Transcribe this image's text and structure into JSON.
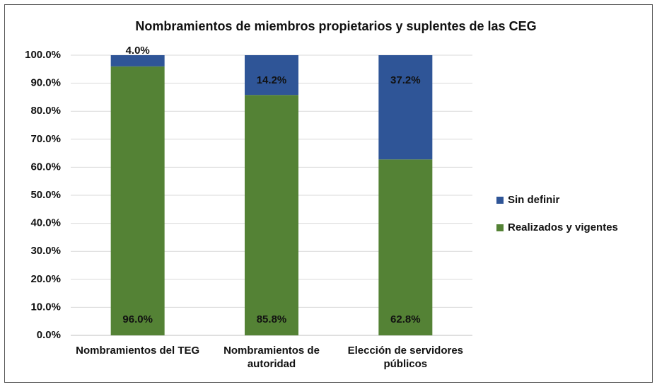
{
  "chart_data": {
    "type": "stacked_bar",
    "title": "Nombramientos de miembros propietarios y suplentes de las CEG",
    "categories": [
      "Nombramientos del TEG",
      "Nombramientos de autoridad",
      "Elección de servidores públicos"
    ],
    "series": [
      {
        "name": "Realizados y vigentes",
        "color": "#548235",
        "values": [
          96.0,
          85.8,
          62.8
        ],
        "value_labels": [
          "96.0%",
          "85.8%",
          "62.8%"
        ]
      },
      {
        "name": "Sin definir",
        "color": "#2f5597",
        "values": [
          4.0,
          14.2,
          37.2
        ],
        "value_labels": [
          "4.0%",
          "14.2%",
          "37.2%"
        ]
      }
    ],
    "ylim": [
      0,
      100
    ],
    "yticks": [
      {
        "value": 0,
        "label": "0.0%"
      },
      {
        "value": 10,
        "label": "10.0%"
      },
      {
        "value": 20,
        "label": "20.0%"
      },
      {
        "value": 30,
        "label": "30.0%"
      },
      {
        "value": 40,
        "label": "40.0%"
      },
      {
        "value": 50,
        "label": "50.0%"
      },
      {
        "value": 60,
        "label": "60.0%"
      },
      {
        "value": 70,
        "label": "70.0%"
      },
      {
        "value": 80,
        "label": "80.0%"
      },
      {
        "value": 90,
        "label": "90.0%"
      },
      {
        "value": 100,
        "label": "100.0%"
      }
    ],
    "grid": true,
    "legend": "right"
  }
}
